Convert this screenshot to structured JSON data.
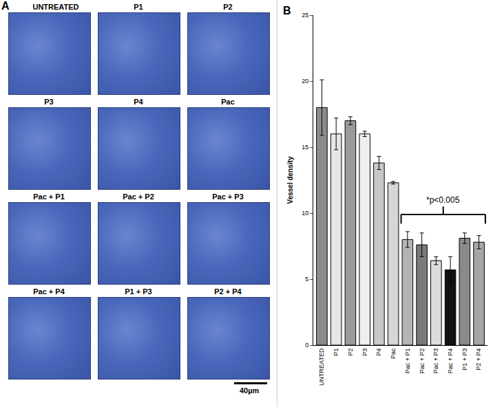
{
  "panel_a": {
    "label": "A",
    "images": [
      "UNTREATED",
      "P1",
      "P2",
      "P3",
      "P4",
      "Pac",
      "Pac + P1",
      "Pac + P2",
      "Pac + P3",
      "Pac + P4",
      "P1 + P3",
      "P2 + P4"
    ],
    "scale_bar": "40µm"
  },
  "panel_b_label": "B",
  "chart_data": {
    "type": "bar",
    "categories": [
      "UNTREATED",
      "P1",
      "P2",
      "P3",
      "P4",
      "Pac",
      "Pac + P1",
      "Pac + P2",
      "Pac + P3",
      "Pac + P4",
      "P1 + P3",
      "P2 + P4"
    ],
    "values": [
      18.0,
      16.0,
      17.0,
      16.0,
      13.8,
      12.3,
      8.0,
      7.6,
      6.4,
      5.7,
      8.1,
      7.8
    ],
    "errors": [
      2.1,
      1.2,
      0.3,
      0.2,
      0.5,
      0.1,
      0.6,
      0.9,
      0.3,
      1.0,
      0.4,
      0.5
    ],
    "colors": [
      "#8c8c8c",
      "#e6e6e6",
      "#9a9a9a",
      "#eeeeee",
      "#c8c8c8",
      "#d6d6d6",
      "#b4b4b4",
      "#7a7a7a",
      "#dcdcdc",
      "#111111",
      "#8a8a8a",
      "#a6a6a6"
    ],
    "y_label": "Vessel density",
    "ylim": [
      0,
      25
    ],
    "yticks": [
      0,
      5,
      10,
      15,
      20,
      25
    ],
    "grid": false,
    "annotations": [
      {
        "text": "*p<0.005",
        "from": "Pac + P1",
        "to": "P2 + P4"
      }
    ]
  }
}
